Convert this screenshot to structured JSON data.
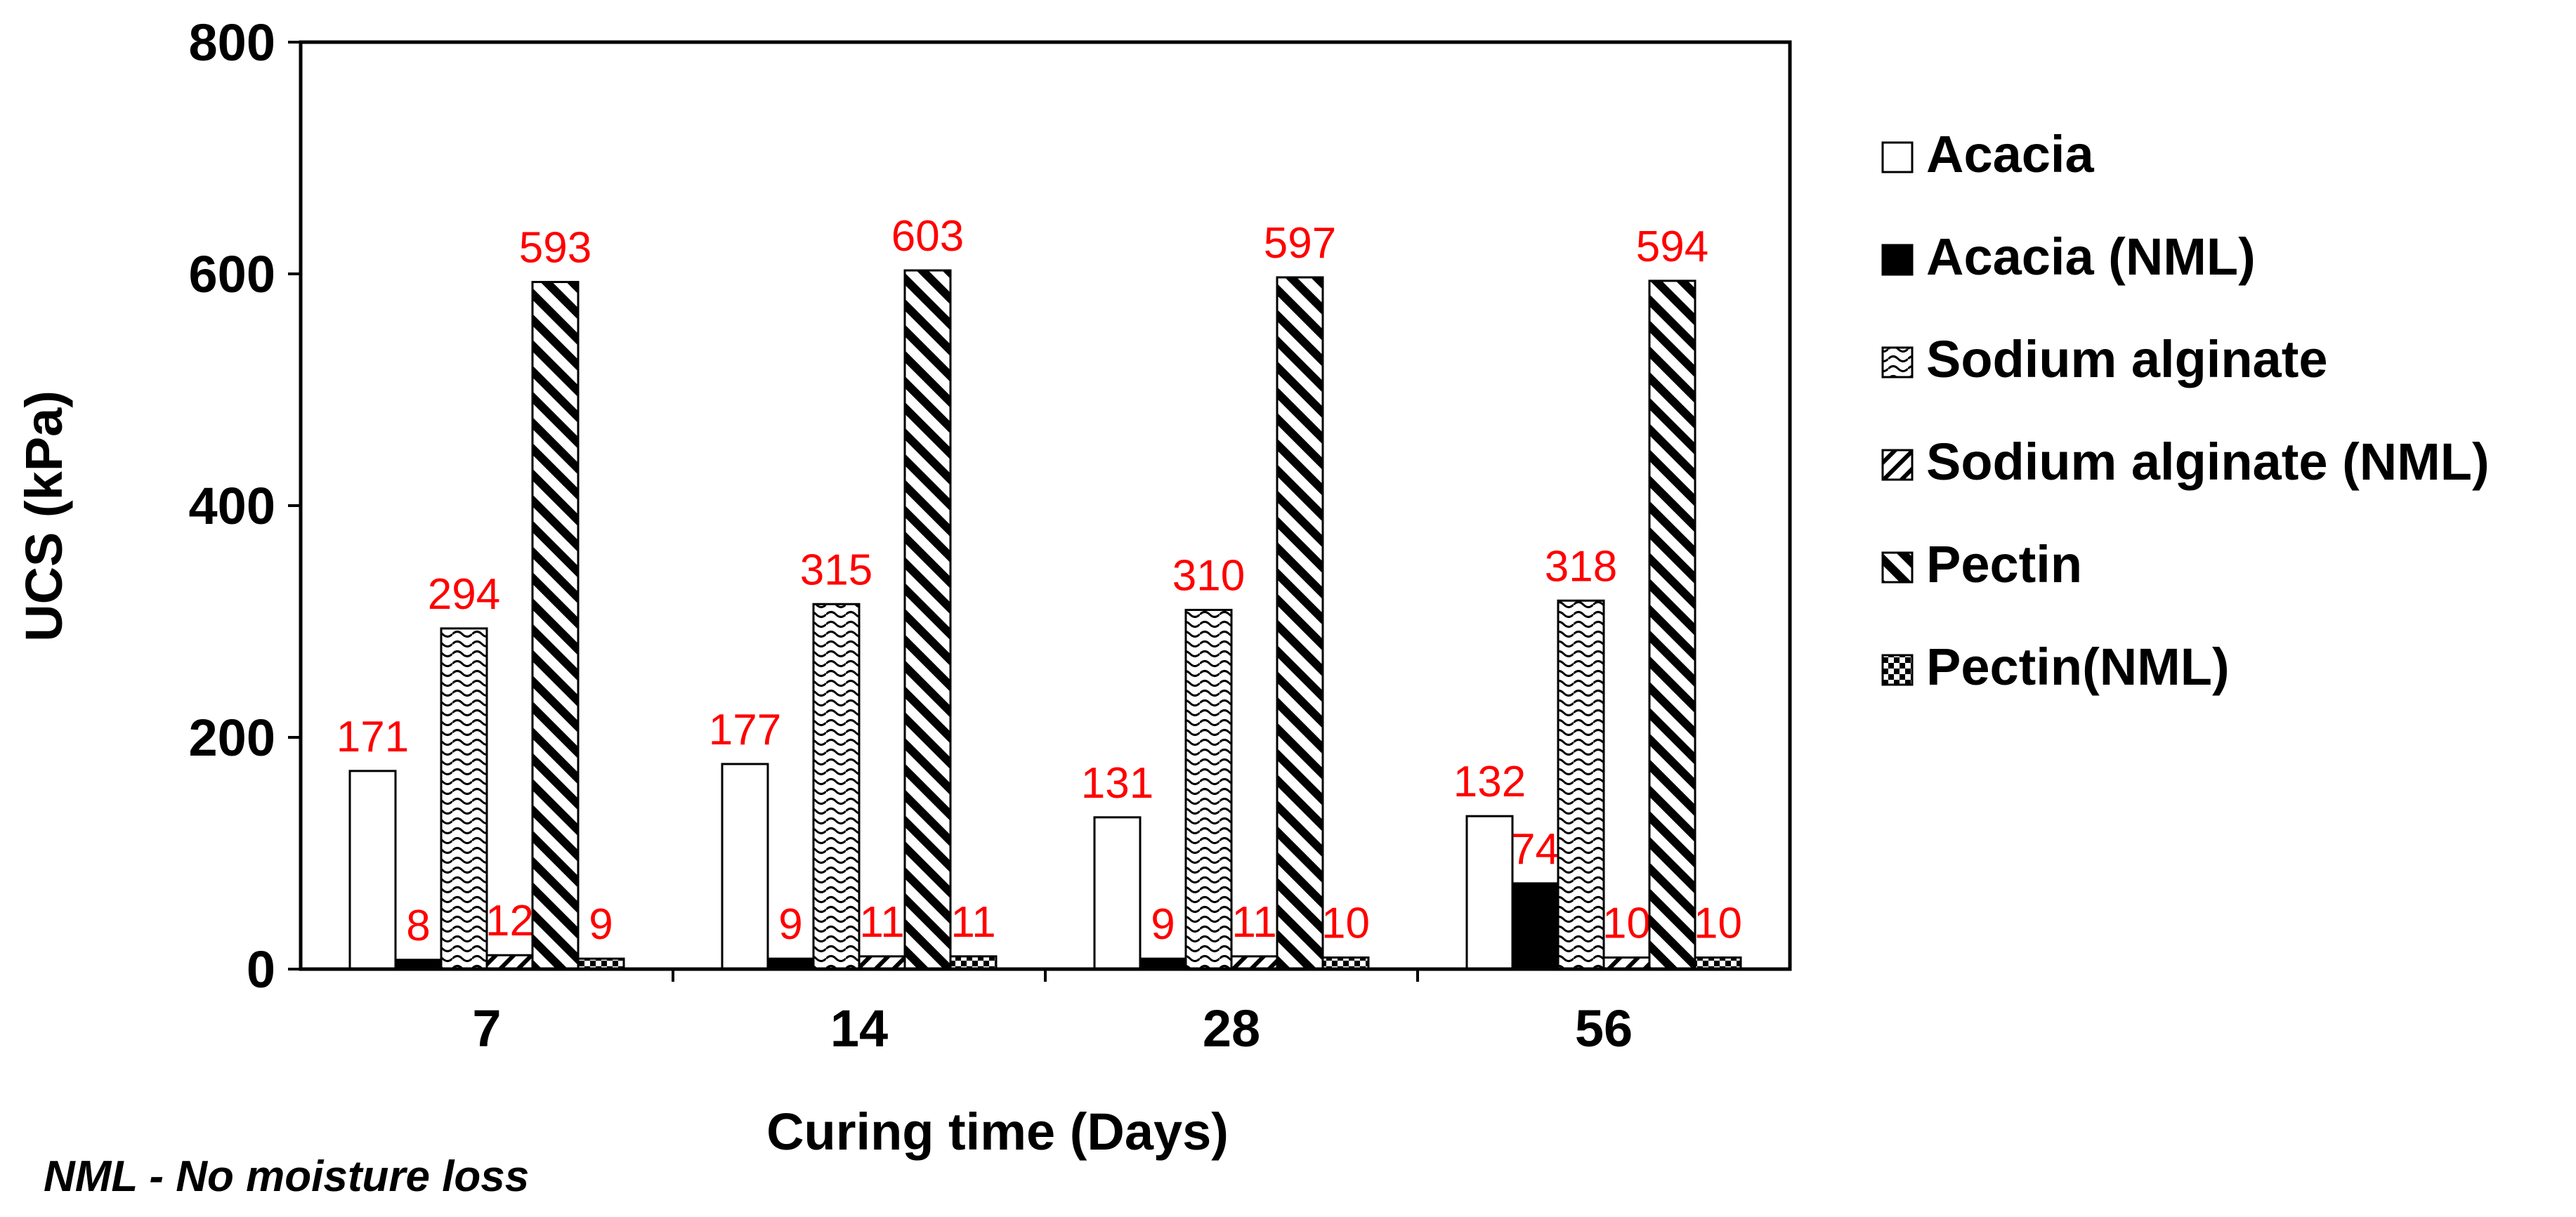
{
  "chart_data": {
    "type": "bar",
    "title": "",
    "xlabel": "Curing time (Days)",
    "ylabel": "UCS (kPa)",
    "ylim": [
      0,
      800
    ],
    "yticks": [
      0,
      200,
      400,
      600,
      800
    ],
    "categories": [
      "7",
      "14",
      "28",
      "56"
    ],
    "legend_position": "right",
    "series": [
      {
        "name": "Acacia",
        "pattern": "white",
        "values": [
          171,
          177,
          131,
          132
        ],
        "labels": [
          "171",
          "177",
          "131",
          "132"
        ]
      },
      {
        "name": "Acacia (NML)",
        "pattern": "black",
        "values": [
          8,
          9,
          9,
          74
        ],
        "labels": [
          "8",
          "9",
          "9",
          "74"
        ]
      },
      {
        "name": "Sodium alginate",
        "pattern": "wave",
        "values": [
          294,
          315,
          310,
          318
        ],
        "labels": [
          "294",
          "315",
          "310",
          "318"
        ]
      },
      {
        "name": "Sodium alginate (NML)",
        "pattern": "diag-light",
        "values": [
          12,
          11,
          11,
          10
        ],
        "labels": [
          "12",
          "11",
          "11",
          "10"
        ]
      },
      {
        "name": "Pectin",
        "pattern": "diag-bold",
        "values": [
          593,
          603,
          597,
          594
        ],
        "labels": [
          "593",
          "603",
          "597",
          "594"
        ]
      },
      {
        "name": "Pectin(NML)",
        "pattern": "checker",
        "values": [
          9,
          11,
          10,
          10
        ],
        "labels": [
          "9",
          "11",
          "10",
          "10"
        ]
      }
    ],
    "colors": {
      "label": "#ff0000",
      "axis": "#000000",
      "bar_outline": "#000000"
    }
  },
  "footnote": "NML - No moisture loss"
}
